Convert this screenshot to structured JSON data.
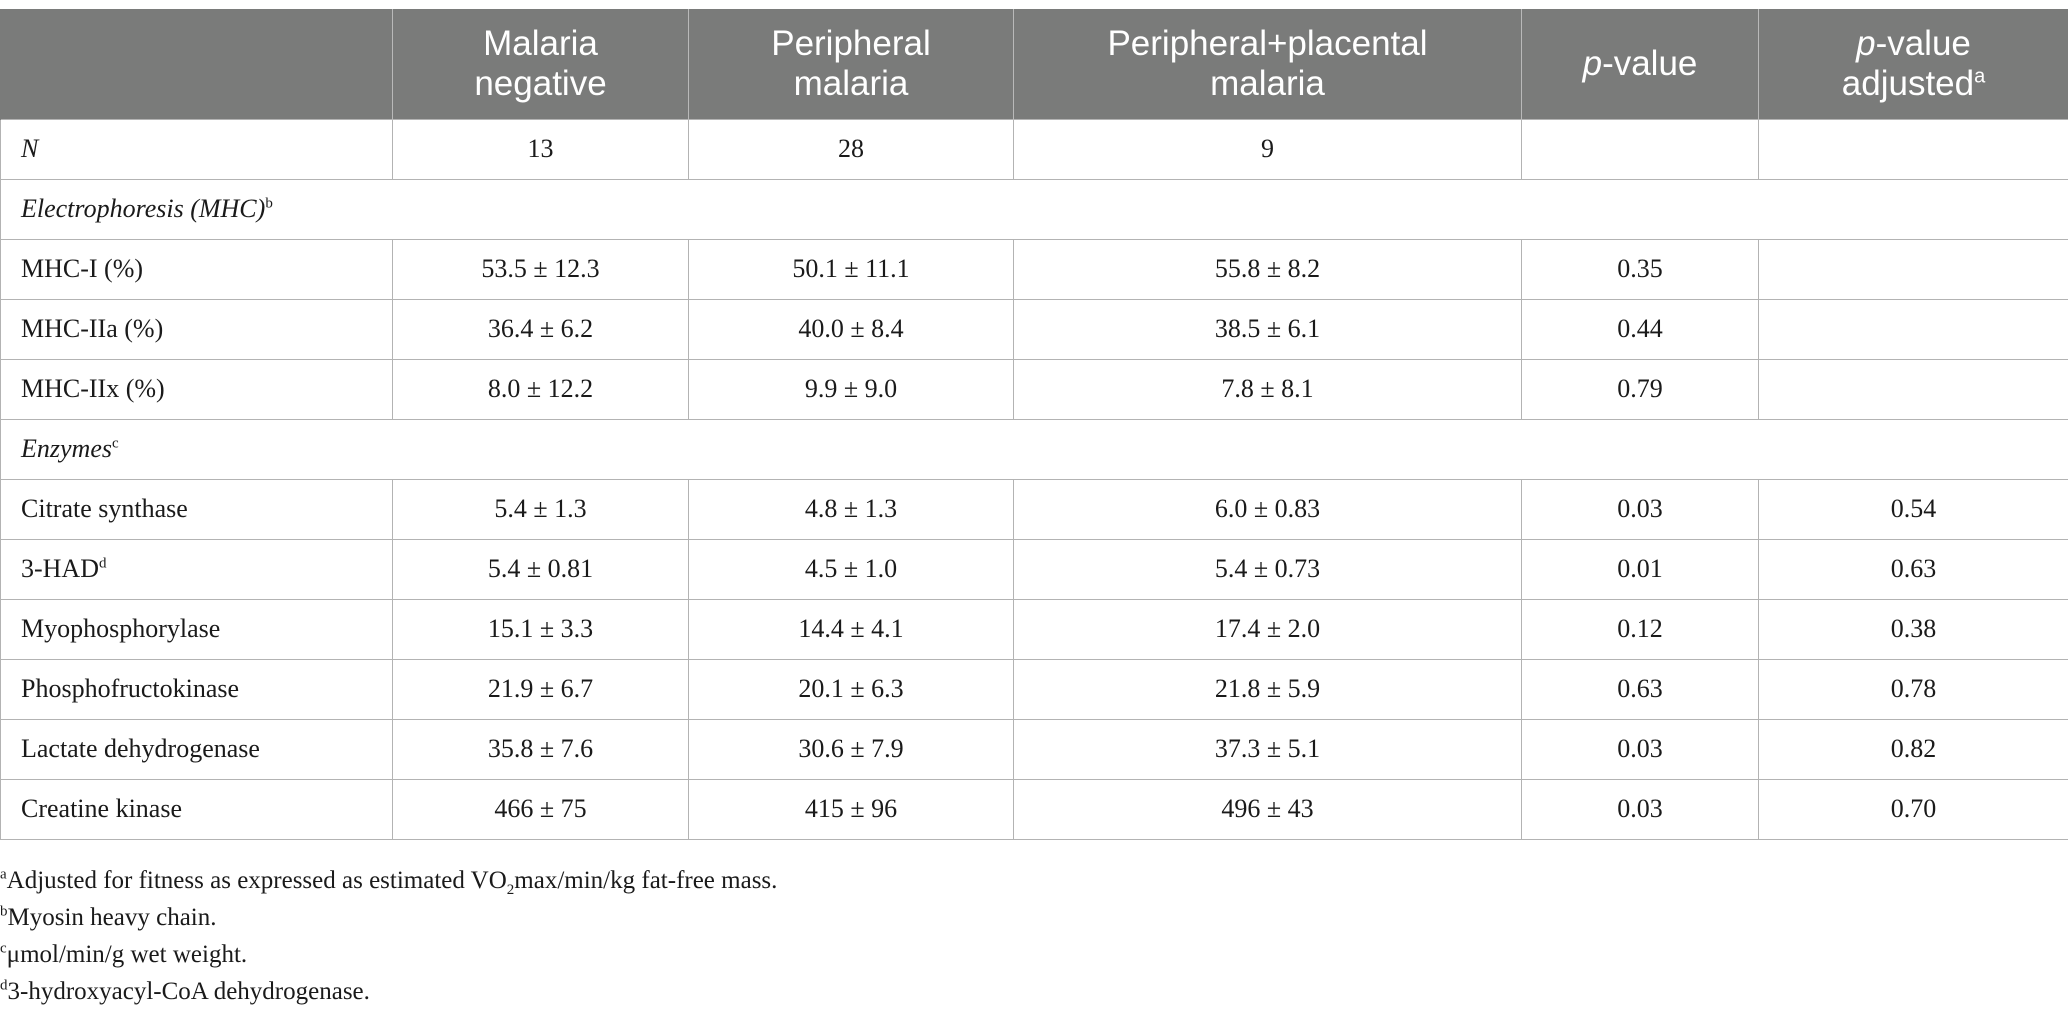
{
  "table": {
    "header": [
      {
        "lines": [
          "",
          ""
        ]
      },
      {
        "lines": [
          "Malaria",
          "negative"
        ]
      },
      {
        "lines": [
          "Peripheral",
          "malaria"
        ]
      },
      {
        "lines": [
          "Peripheral+placental",
          "malaria"
        ]
      },
      {
        "p": "p",
        "rest": "-value",
        "sup": ""
      },
      {
        "p": "p",
        "rest": "-value",
        "line2": "adjusted",
        "sup": "a"
      }
    ],
    "n_row": {
      "label": "N",
      "values": [
        "13",
        "28",
        "9",
        "",
        ""
      ]
    },
    "sections": [
      {
        "title": "Electrophoresis (MHC)",
        "title_sup": "b",
        "rows": [
          {
            "label": "MHC-I (%)",
            "label_sup": "",
            "values": [
              "53.5 ± 12.3",
              "50.1 ± 11.1",
              "55.8 ± 8.2",
              "0.35",
              ""
            ]
          },
          {
            "label": "MHC-IIa (%)",
            "label_sup": "",
            "values": [
              "36.4 ± 6.2",
              "40.0 ± 8.4",
              "38.5 ± 6.1",
              "0.44",
              ""
            ]
          },
          {
            "label": "MHC-IIx (%)",
            "label_sup": "",
            "values": [
              "8.0 ± 12.2",
              "9.9 ± 9.0",
              "7.8 ± 8.1",
              "0.79",
              ""
            ]
          }
        ]
      },
      {
        "title": "Enzymes",
        "title_sup": "c",
        "rows": [
          {
            "label": "Citrate synthase",
            "label_sup": "",
            "values": [
              "5.4 ± 1.3",
              "4.8 ± 1.3",
              "6.0 ± 0.83",
              "0.03",
              "0.54"
            ]
          },
          {
            "label": "3-HAD",
            "label_sup": "d",
            "values": [
              "5.4 ± 0.81",
              "4.5 ± 1.0",
              "5.4 ± 0.73",
              "0.01",
              "0.63"
            ]
          },
          {
            "label": "Myophosphorylase",
            "label_sup": "",
            "values": [
              "15.1 ± 3.3",
              "14.4 ± 4.1",
              "17.4 ± 2.0",
              "0.12",
              "0.38"
            ]
          },
          {
            "label": "Phosphofructokinase",
            "label_sup": "",
            "values": [
              "21.9 ± 6.7",
              "20.1 ± 6.3",
              "21.8 ± 5.9",
              "0.63",
              "0.78"
            ]
          },
          {
            "label": "Lactate dehydrogenase",
            "label_sup": "",
            "values": [
              "35.8 ± 7.6",
              "30.6 ± 7.9",
              "37.3 ± 5.1",
              "0.03",
              "0.82"
            ]
          },
          {
            "label": "Creatine kinase",
            "label_sup": "",
            "values": [
              "466 ± 75",
              "415 ± 96",
              "496 ± 43",
              "0.03",
              "0.70"
            ]
          }
        ]
      }
    ]
  },
  "footnotes": {
    "a": {
      "mark": "a",
      "before": "Adjusted for fitness as expressed as estimated VO",
      "sub": "2",
      "after": "max/min/kg fat-free mass."
    },
    "b": {
      "mark": "b",
      "text": "Myosin heavy chain."
    },
    "c": {
      "mark": "c",
      "text": "μmol/min/g wet weight."
    },
    "d": {
      "mark": "d",
      "text": "3-hydroxyacyl-CoA dehydrogenase."
    }
  },
  "colors": {
    "header_bg": "#7a7b7a",
    "header_text": "#ffffff",
    "grid": "#b3b3b3"
  }
}
